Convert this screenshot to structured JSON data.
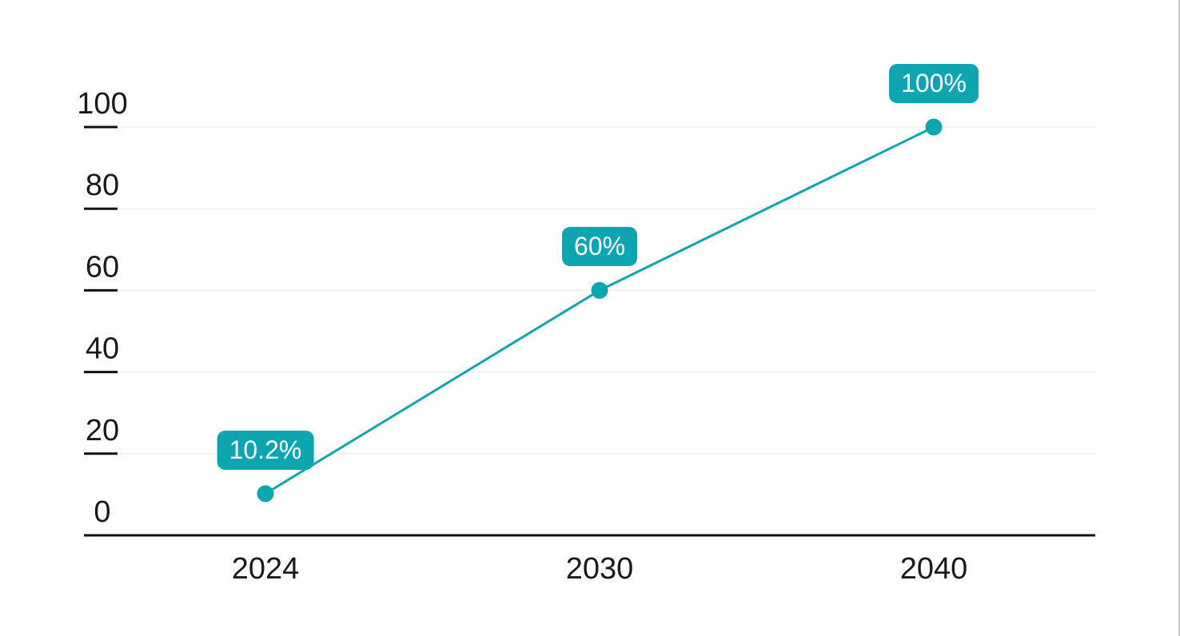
{
  "chart_data": {
    "type": "line",
    "categories": [
      "2024",
      "2030",
      "2040"
    ],
    "values": [
      10.2,
      60,
      100
    ],
    "point_labels": [
      "10.2%",
      "60%",
      "100%"
    ],
    "y_ticks": [
      0,
      20,
      40,
      60,
      80,
      100
    ],
    "ylim": [
      0,
      100
    ],
    "title": "",
    "xlabel": "",
    "ylabel": "",
    "grid": true,
    "legend": false,
    "data_label_style": "badge-above-point",
    "colors": {
      "line": "#0DA5AF",
      "marker": "#0DA5AF",
      "badge_bg": "#0DA5AF",
      "badge_text": "#FFFFFF",
      "axis": "#111111",
      "tick": "#111111",
      "gridline": "#F1F1F1",
      "label_text": "#1A1A1A",
      "background": "#FFFFFF",
      "right_border": "#CBCBCB"
    }
  }
}
